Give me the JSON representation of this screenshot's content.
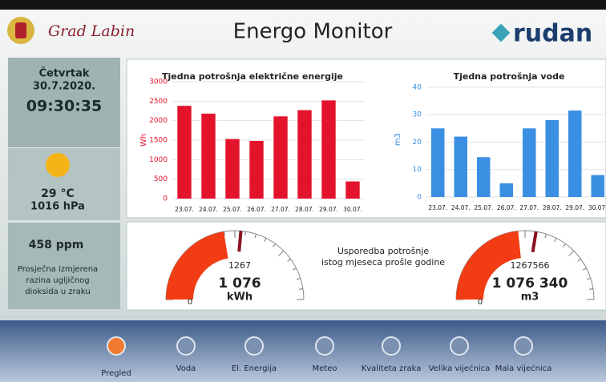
{
  "header": {
    "left": "Grad Labin",
    "title": "Energo Monitor",
    "brand": "rudan"
  },
  "sidebar": {
    "day": "Četvrtak",
    "date": "30.7.2020.",
    "time": "09:30:35",
    "temperature": "29 °C",
    "pressure": "1016 hPa",
    "co2": "458 ppm",
    "co2_caption": [
      "Prosječna izmjerena",
      "razina ugljičnog",
      "dioksida u zraku"
    ]
  },
  "comparison_text": [
    "Usporedba potrošnje",
    "istog mjeseca prošle godine"
  ],
  "chart_data": [
    {
      "type": "bar",
      "title": "Tjedna potrošnja električne energije",
      "y_label": "Wh",
      "color": "#e3132b",
      "categories": [
        "23.07.",
        "24.07.",
        "25.07.",
        "26.07.",
        "27.07.",
        "28.07.",
        "29.07.",
        "30.07."
      ],
      "values": [
        2380,
        2180,
        1530,
        1480,
        2110,
        2270,
        2520,
        440
      ],
      "ylim": [
        0,
        3000
      ],
      "yticks": [
        0,
        500,
        1000,
        1500,
        2000,
        2500,
        3000
      ],
      "grid": true
    },
    {
      "type": "bar",
      "title": "Tjedna potrošnja vode",
      "y_label": "m3",
      "color": "#3b8fe2",
      "categories": [
        "23.07.",
        "24.07.",
        "25.07.",
        "26.07.",
        "27.07.",
        "28.07.",
        "29.07.",
        "30.07."
      ],
      "values": [
        25,
        22,
        14.5,
        5,
        25,
        28,
        31.5,
        8
      ],
      "ylim": [
        0,
        42
      ],
      "yticks": [
        0,
        10,
        20,
        30,
        40
      ],
      "grid": true
    },
    {
      "type": "gauge",
      "value": 1076,
      "value_label": "1 076",
      "unit": "kWh",
      "reference": 1267,
      "range": [
        0,
        2400
      ],
      "color": "#f23c14"
    },
    {
      "type": "gauge",
      "value": 1076340,
      "value_label": "1 076 340",
      "unit": "m3",
      "reference": 1267566,
      "range": [
        0,
        2300000
      ],
      "color": "#f23c14"
    }
  ],
  "nav": [
    "Pregled",
    "Voda",
    "El. Energija",
    "Meteo",
    "Kvaliteta zraka",
    "Velika vijećnica",
    "Mala vijećnica"
  ]
}
